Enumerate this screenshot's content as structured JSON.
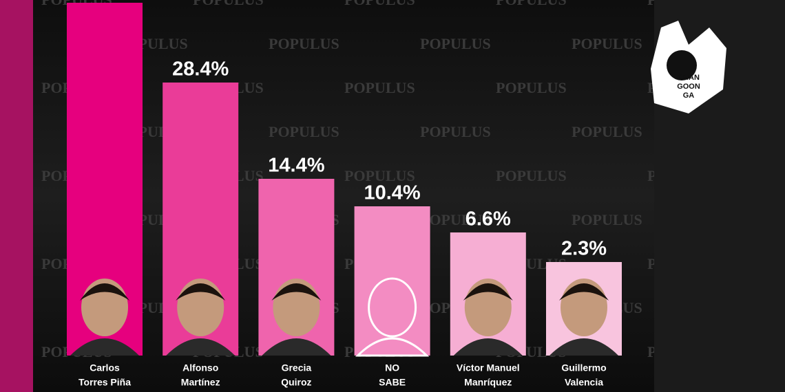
{
  "chart_data": {
    "type": "bar",
    "watermark": "POPULUS",
    "logo": [
      "CHAN",
      "GOON",
      "GA"
    ],
    "categories": [
      [
        "Carlos",
        "Torres Piña"
      ],
      [
        "Alfonso",
        "Martínez"
      ],
      [
        "Grecia",
        "Quiroz"
      ],
      [
        "NO",
        "SABE"
      ],
      [
        "Víctor Manuel",
        "Manríquez"
      ],
      [
        "Guillermo",
        "Valencia"
      ]
    ],
    "values": [
      40,
      28.4,
      14.4,
      10.4,
      6.6,
      2.3
    ],
    "value_labels": [
      null,
      "28.4%",
      "14.4%",
      "10.4%",
      "6.6%",
      "2.3%"
    ],
    "colors": [
      "#e6007e",
      "#ea3c98",
      "#ef64ad",
      "#f38cc2",
      "#f6aed3",
      "#f8c4de"
    ]
  }
}
